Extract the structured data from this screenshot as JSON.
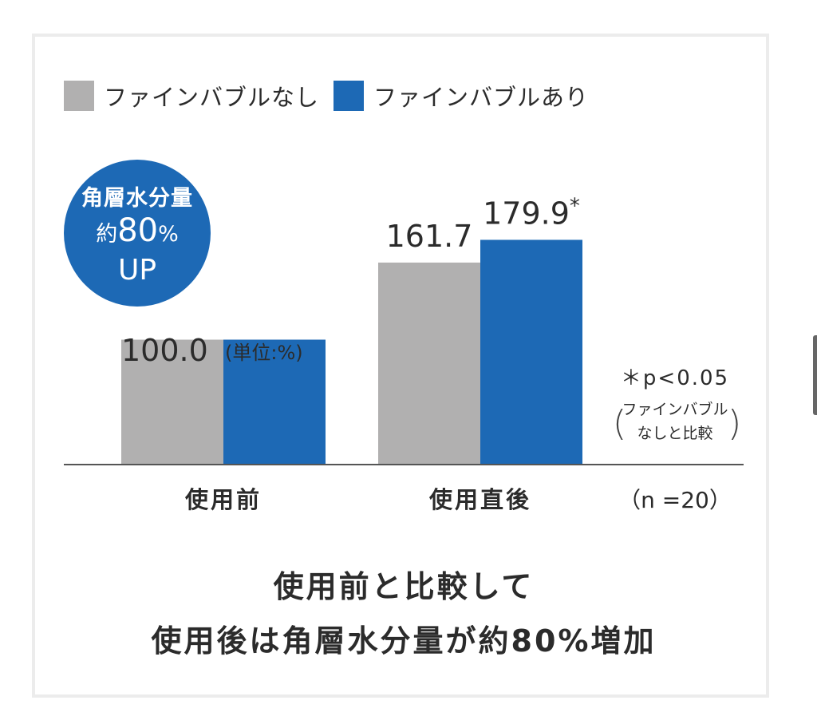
{
  "legend": [
    {
      "label": "ファインバブルなし",
      "color": "#b1b0b0"
    },
    {
      "label": "ファインバブルあり",
      "color": "#1d69b5"
    }
  ],
  "badge": {
    "line1": "角層水分量",
    "line2_prefix": "約",
    "line2_value": "80",
    "line2_unit": "%",
    "line3": "UP",
    "color": "#1d69b5"
  },
  "unit_note": "(単位:%)",
  "significance": {
    "line1": "＊p<0.05",
    "line2": "ファインバブル",
    "line3": "なしと比較"
  },
  "n_note": "（n =20）",
  "caption": {
    "line1": "使用前と比較して",
    "line2": "使用後は角層水分量が約80%増加"
  },
  "chart_data": {
    "type": "bar",
    "categories": [
      "使用前",
      "使用直後"
    ],
    "series": [
      {
        "name": "ファインバブルなし",
        "values": [
          100.0,
          161.7
        ],
        "labels": [
          "100.0",
          "161.7"
        ],
        "color": "#b1b0b0"
      },
      {
        "name": "ファインバブルあり",
        "values": [
          100.0,
          179.9
        ],
        "labels": [
          "",
          "179.9*"
        ],
        "color": "#1d69b5"
      }
    ],
    "ylim": [
      0,
      245
    ],
    "grid": false
  }
}
